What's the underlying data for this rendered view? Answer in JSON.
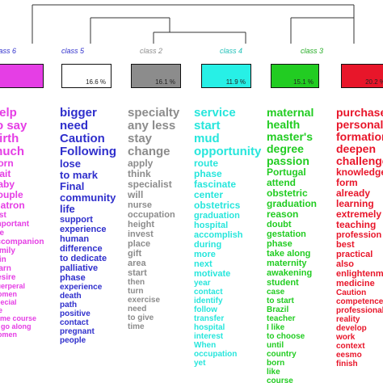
{
  "classes": [
    {
      "id": "class6",
      "label": "class 6",
      "percent": "",
      "color": "#e53ee5",
      "words": [
        "help",
        "to say",
        "birth",
        "much",
        "born",
        "wait",
        "baby",
        "couple",
        "matron",
        "test",
        "important",
        "the",
        "accompanion",
        "family",
        "join",
        "learn",
        "desire",
        "puerperal",
        "women",
        "special",
        "life",
        "same course",
        "to go along",
        "women"
      ]
    },
    {
      "id": "class5",
      "label": "class 5",
      "percent": "16.6 %",
      "color": "#2f2fcc",
      "words": [
        "bigger",
        "need",
        "Caution",
        "Following",
        "lose",
        "to mark",
        "Final",
        "community",
        "life",
        "support",
        "experience",
        "human",
        "difference",
        "to dedicate",
        "palliative",
        "phase",
        "experience",
        "death",
        "path",
        "positive",
        "contact",
        "pregnant",
        "people"
      ]
    },
    {
      "id": "class2",
      "label": "class 2",
      "percent": "16.1 %",
      "color": "#8c8c8c",
      "words": [
        "specialty",
        "any less",
        "stay",
        "change",
        "apply",
        "think",
        "specialist",
        "will",
        "nurse",
        "occupation",
        "height",
        "invest",
        "place",
        "gift",
        "area",
        "start",
        "then",
        "turn",
        "exercise",
        "need",
        "to give",
        "time"
      ]
    },
    {
      "id": "class4",
      "label": "class 4",
      "percent": "11.9 %",
      "color": "#27f0e6",
      "words": [
        "service",
        "start",
        "mud",
        "opportunity",
        "route",
        "phase",
        "fascinate",
        "center",
        "obstetrics",
        "graduation",
        "hospital",
        "accomplish",
        "during",
        "more",
        "next",
        "motivate",
        "year",
        "contact",
        "identify",
        "follow",
        "transfer",
        "hospital",
        "interest",
        "When",
        "occupation",
        "yet"
      ]
    },
    {
      "id": "class3",
      "label": "class 3",
      "percent": "15.1 %",
      "color": "#22cc22",
      "words": [
        "maternal",
        "health",
        "master's",
        "degree",
        "passion",
        "Portugal",
        "attend",
        "obstetric",
        "graduation",
        "reason",
        "doubt",
        "gestation",
        "phase",
        "take along",
        "maternity",
        "awakening",
        "student",
        "case",
        "to start",
        "Brazil",
        "teacher",
        "I like",
        "to choose",
        "until",
        "country",
        "born",
        "like",
        "course"
      ]
    },
    {
      "id": "class1",
      "label": "",
      "percent": "20.2 %",
      "color": "#e8162a",
      "words": [
        "purchase",
        "personal",
        "formation",
        "deepen",
        "challenge",
        "knowledge",
        "form",
        "already",
        "learning",
        "extremely",
        "teaching",
        "profession",
        "best",
        "practical",
        "also",
        "enlightenment",
        "medicine",
        "Caution",
        "competence",
        "professional",
        "reality",
        "develop",
        "work",
        "context",
        "eesmo",
        "finish"
      ]
    }
  ]
}
